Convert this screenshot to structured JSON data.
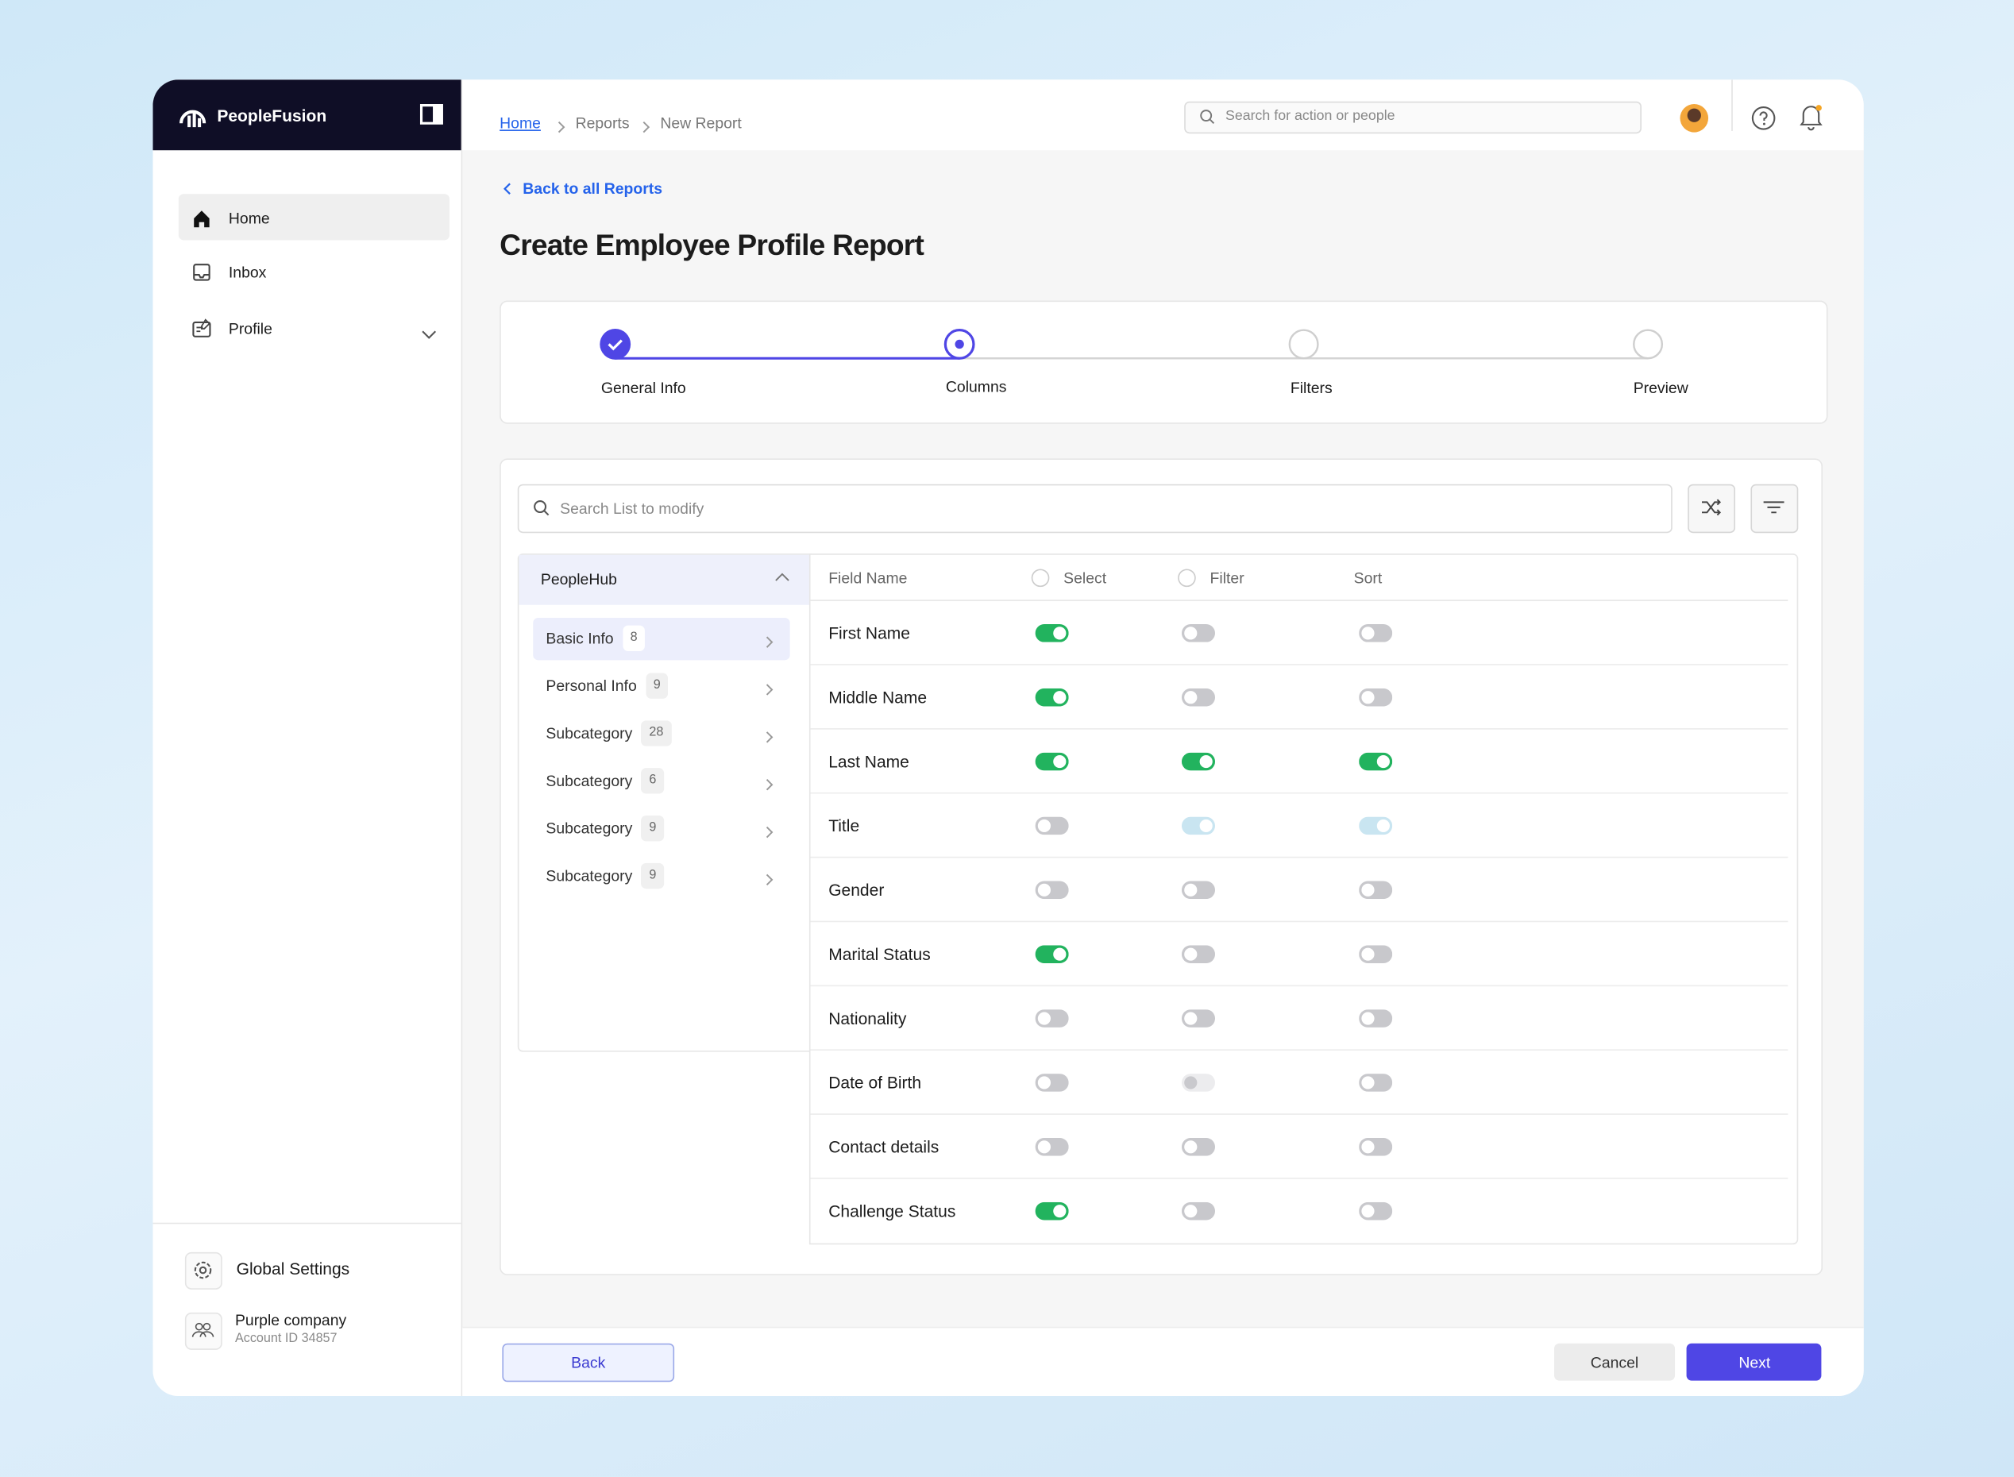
{
  "sidebar": {
    "brand": "PeopleFusion",
    "nav": [
      "Home",
      "Inbox",
      "Profile"
    ],
    "settings": "Global Settings",
    "company": "Purple company",
    "account": "Account ID 34857"
  },
  "breadcrumbs": [
    "Home",
    "Reports",
    "New Report"
  ],
  "search_placeholder": "Search for action or people",
  "back_link": "Back to all Reports",
  "title": "Create Employee Profile Report",
  "steps": [
    {
      "label": "General Info",
      "state": "done"
    },
    {
      "label": "Columns",
      "state": "current"
    },
    {
      "label": "Filters",
      "state": "todo"
    },
    {
      "label": "Preview",
      "state": "todo"
    }
  ],
  "list_search_placeholder": "Search List to modify",
  "group": "PeopleHub",
  "categories": [
    {
      "label": "Basic Info",
      "count": 8
    },
    {
      "label": "Personal Info",
      "count": 9
    },
    {
      "label": "Subcategory",
      "count": 28
    },
    {
      "label": "Subcategory",
      "count": 6
    },
    {
      "label": "Subcategory",
      "count": 9
    },
    {
      "label": "Subcategory",
      "count": 9
    }
  ],
  "columns": [
    "Field Name",
    "Select",
    "Filter",
    "Sort"
  ],
  "rows": [
    {
      "field": "First Name",
      "toggles": [
        "on",
        "off",
        "off"
      ]
    },
    {
      "field": "Middle Name",
      "toggles": [
        "on",
        "off",
        "off"
      ]
    },
    {
      "field": "Last Name",
      "toggles": [
        "on",
        "on",
        "on"
      ]
    },
    {
      "field": "Title",
      "toggles": [
        "off",
        "on-disabled",
        "on-disabled"
      ]
    },
    {
      "field": "Gender",
      "toggles": [
        "off",
        "off",
        "off"
      ]
    },
    {
      "field": "Marital Status",
      "toggles": [
        "on",
        "off",
        "off"
      ]
    },
    {
      "field": "Nationality",
      "toggles": [
        "off",
        "off",
        "off"
      ]
    },
    {
      "field": "Date of Birth",
      "toggles": [
        "off",
        "off-disabled",
        "off"
      ]
    },
    {
      "field": "Contact details",
      "toggles": [
        "off",
        "off",
        "off"
      ]
    },
    {
      "field": "Challenge Status",
      "toggles": [
        "on",
        "off",
        "off"
      ]
    }
  ],
  "buttons": {
    "back": "Back",
    "cancel": "Cancel",
    "next": "Next"
  }
}
